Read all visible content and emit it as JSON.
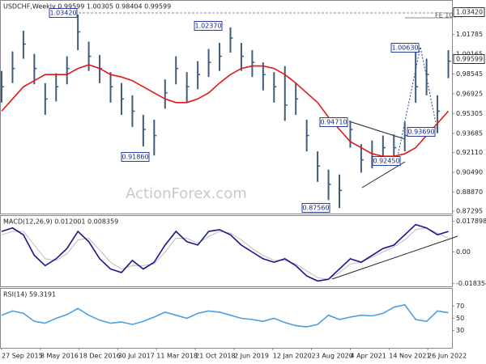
{
  "chart_data": [
    {
      "type": "ohlc",
      "title": "USDCHF,Weekly  0.99599 1.00305 0.98404 0.99599",
      "watermark": "ActionForex.com",
      "x": [
        0,
        9,
        18,
        27,
        36,
        45,
        54,
        63,
        72,
        81,
        90,
        99,
        108,
        117,
        126,
        135,
        144,
        153,
        162,
        171,
        180,
        189,
        198,
        207,
        216,
        225,
        234,
        243,
        252,
        261,
        270,
        279,
        288,
        297,
        306,
        315,
        324,
        333,
        342,
        351,
        360,
        369
      ],
      "xlim": [
        0,
        372
      ],
      "ylim": [
        0.871,
        1.0455
      ],
      "yticks": [
        1.01785,
        1.00165,
        0.98545,
        0.96925,
        0.95305,
        0.93685,
        {
          "value": 0.9211,
          "label": "0.92110"
        },
        {
          "value": 0.9049,
          "label": "0.90490"
        },
        {
          "value": 0.8887,
          "label": "0.88870"
        },
        0.87295
      ],
      "series": [
        {
          "color": "#3f5d7a",
          "high": [
            0.988,
            1.004,
            1.021,
            1.002,
            0.978,
            0.986,
            1.0,
            1.0342,
            1.012,
            1.001,
            0.987,
            0.978,
            0.968,
            0.952,
            0.948,
            0.981,
            1.0,
            0.987,
            0.996,
            1.006,
            1.011,
            1.0237,
            1.011,
            1.005,
            0.995,
            0.987,
            0.992,
            0.978,
            0.948,
            0.922,
            0.907,
            0.903,
            0.9471,
            0.928,
            0.931,
            0.935,
            0.936,
            0.946,
            1.0063,
            0.998,
            0.968,
            1.005
          ],
          "low": [
            0.962,
            0.978,
            0.998,
            0.977,
            0.952,
            0.963,
            0.977,
            1.005,
            0.988,
            0.978,
            0.962,
            0.952,
            0.942,
            0.926,
            0.9186,
            0.957,
            0.977,
            0.962,
            0.973,
            0.983,
            0.988,
            1.003,
            0.988,
            0.983,
            0.972,
            0.962,
            0.947,
            0.952,
            0.922,
            0.897,
            0.882,
            0.8756,
            0.925,
            0.9045,
            0.908,
            0.913,
            0.914,
            0.922,
            0.962,
            0.968,
            0.9369,
            0.982
          ],
          "close": [
            0.975,
            0.99,
            1.01,
            0.99,
            0.965,
            0.975,
            0.99,
            1.02,
            1.0,
            0.99,
            0.975,
            0.965,
            0.955,
            0.94,
            0.935,
            0.97,
            0.99,
            0.975,
            0.985,
            0.995,
            1.0,
            1.015,
            1.0,
            0.995,
            0.985,
            0.975,
            0.96,
            0.965,
            0.935,
            0.91,
            0.895,
            0.89,
            0.94,
            0.915,
            0.92,
            0.925,
            0.925,
            0.935,
            0.975,
            0.985,
            0.955,
            0.996
          ]
        },
        {
          "color": "#e3161b",
          "values": [
            0.955,
            0.965,
            0.975,
            0.98,
            0.985,
            0.985,
            0.985,
            0.99,
            0.993,
            0.99,
            0.985,
            0.983,
            0.98,
            0.975,
            0.97,
            0.965,
            0.962,
            0.962,
            0.965,
            0.97,
            0.978,
            0.985,
            0.99,
            0.992,
            0.992,
            0.99,
            0.985,
            0.978,
            0.97,
            0.962,
            0.95,
            0.94,
            0.93,
            0.925,
            0.92,
            0.918,
            0.918,
            0.92,
            0.925,
            0.935,
            0.945,
            0.955
          ]
        }
      ],
      "annotations": [
        "1.03420",
        "1.02370",
        "0.91860",
        "0.94710",
        "0.92450",
        "0.87560",
        "1.00630",
        "0.93690",
        "FE 100.0"
      ],
      "axis_markers": [
        "1.03420",
        "0.99599"
      ]
    },
    {
      "type": "line",
      "title": "MACD(12,26,9) 0.012001 0.008359",
      "x": [
        0,
        9,
        18,
        27,
        36,
        45,
        54,
        63,
        72,
        81,
        90,
        99,
        108,
        117,
        126,
        135,
        144,
        153,
        162,
        171,
        180,
        189,
        198,
        207,
        216,
        225,
        234,
        243,
        252,
        261,
        270,
        279,
        288,
        297,
        306,
        315,
        324,
        333,
        342,
        351,
        360,
        369
      ],
      "xlim": [
        0,
        372
      ],
      "ylim": [
        -0.0201,
        0.021
      ],
      "yticks": [
        0.017898,
        {
          "value": 0,
          "label": "0.00"
        },
        -0.018354
      ],
      "series": [
        {
          "color": "#bdbdbd",
          "values": [
            0.01,
            0.012,
            0.012,
            0.004,
            -0.004,
            -0.005,
            -0.001,
            0.007,
            0.008,
            0.001,
            -0.006,
            -0.01,
            -0.008,
            -0.008,
            -0.007,
            0.0,
            0.008,
            0.008,
            0.005,
            0.009,
            0.012,
            0.011,
            0.007,
            0.002,
            -0.002,
            -0.005,
            -0.005,
            -0.007,
            -0.011,
            -0.015,
            -0.016,
            -0.012,
            -0.007,
            -0.006,
            -0.003,
            0.0,
            0.003,
            0.007,
            0.013,
            0.014,
            0.011,
            0.008
          ]
        },
        {
          "color": "#16168a",
          "values": [
            0.012,
            0.014,
            0.01,
            -0.002,
            -0.008,
            -0.004,
            0.002,
            0.012,
            0.006,
            -0.004,
            -0.01,
            -0.012,
            -0.005,
            -0.01,
            -0.006,
            0.004,
            0.012,
            0.006,
            0.004,
            0.012,
            0.013,
            0.01,
            0.004,
            0.0,
            -0.004,
            -0.006,
            -0.004,
            -0.008,
            -0.014,
            -0.017,
            -0.016,
            -0.01,
            -0.004,
            -0.006,
            -0.002,
            0.002,
            0.004,
            0.01,
            0.016,
            0.014,
            0.01,
            0.012
          ]
        }
      ]
    },
    {
      "type": "line",
      "title": "RSI(14) 59.3191",
      "x": [
        0,
        9,
        18,
        27,
        36,
        45,
        54,
        63,
        72,
        81,
        90,
        99,
        108,
        117,
        126,
        135,
        144,
        153,
        162,
        171,
        180,
        189,
        198,
        207,
        216,
        225,
        234,
        243,
        252,
        261,
        270,
        279,
        288,
        297,
        306,
        315,
        324,
        333,
        342,
        351,
        360,
        369
      ],
      "xlim": [
        0,
        372
      ],
      "ylim": [
        2,
        98
      ],
      "yticks": [
        70,
        50,
        30
      ],
      "xticks": [
        {
          "value": 0,
          "label": "27 Sep 2015"
        },
        {
          "value": 32,
          "label": "8 May 2016"
        },
        {
          "value": 64,
          "label": "18 Dec 2016"
        },
        {
          "value": 96,
          "label": "30 Jul 2017"
        },
        {
          "value": 128,
          "label": "11 Mar 2018"
        },
        {
          "value": 160,
          "label": "21 Oct 2018"
        },
        {
          "value": 192,
          "label": "2 Jun 2019"
        },
        {
          "value": 224,
          "label": "12 Jan 2020"
        },
        {
          "value": 256,
          "label": "23 Aug 2020"
        },
        {
          "value": 288,
          "label": "4 Apr 2021"
        },
        {
          "value": 320,
          "label": "14 Nov 2021"
        },
        {
          "value": 352,
          "label": "26 Jun 2022"
        }
      ],
      "series": [
        {
          "color": "#4a9fe0",
          "values": [
            55,
            62,
            58,
            45,
            42,
            50,
            56,
            66,
            55,
            47,
            42,
            44,
            40,
            45,
            52,
            60,
            55,
            50,
            58,
            62,
            60,
            55,
            50,
            48,
            45,
            50,
            43,
            38,
            36,
            40,
            55,
            48,
            52,
            55,
            54,
            58,
            68,
            72,
            48,
            45,
            62,
            59
          ]
        }
      ]
    }
  ]
}
